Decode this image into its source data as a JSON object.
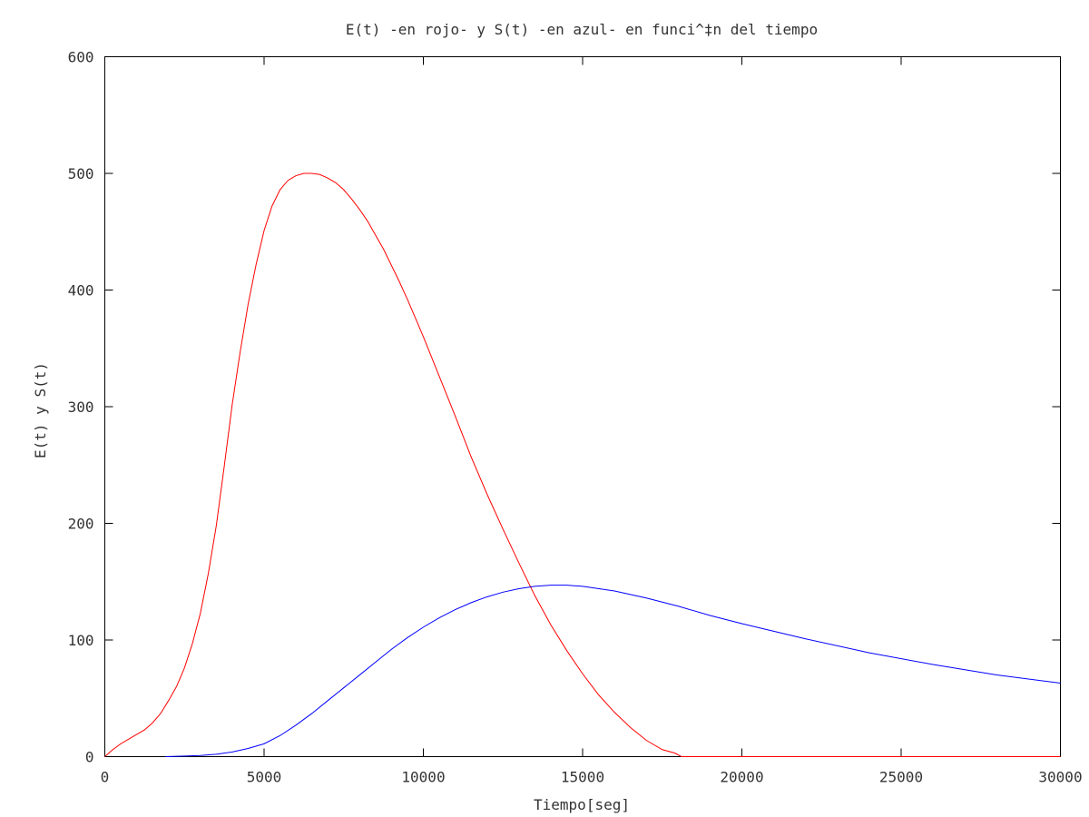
{
  "chart_data": {
    "type": "line",
    "title": "E(t) -en rojo- y S(t) -en azul- en funci^‡n del tiempo",
    "xlabel": "Tiempo[seg]",
    "ylabel": "E(t) y S(t)",
    "xlim": [
      0,
      30000
    ],
    "ylim": [
      0,
      600
    ],
    "xticks": [
      0,
      5000,
      10000,
      15000,
      20000,
      25000,
      30000
    ],
    "yticks": [
      0,
      100,
      200,
      300,
      400,
      500,
      600
    ],
    "grid": false,
    "legend": "none",
    "series": [
      {
        "color": "#ff0000",
        "x": [
          0,
          250,
          500,
          750,
          1000,
          1250,
          1500,
          1750,
          2000,
          2250,
          2500,
          2750,
          3000,
          3250,
          3500,
          3750,
          4000,
          4250,
          4500,
          4750,
          5000,
          5250,
          5500,
          5750,
          6000,
          6250,
          6500,
          6750,
          7000,
          7250,
          7500,
          7750,
          8000,
          8250,
          8500,
          8750,
          9000,
          9250,
          9500,
          9750,
          10000,
          10500,
          11000,
          11500,
          12000,
          12500,
          13000,
          13500,
          14000,
          14500,
          15000,
          15500,
          16000,
          16500,
          17000,
          17500,
          17900,
          18100,
          19000,
          20000,
          22000,
          24000,
          26000,
          28000,
          30000
        ],
        "values": [
          0,
          6,
          11,
          15,
          19,
          23,
          29,
          37,
          48,
          60,
          76,
          97,
          123,
          157,
          198,
          249,
          302,
          347,
          388,
          422,
          451,
          472,
          486,
          494,
          498,
          500,
          500,
          499,
          496,
          492,
          486,
          478,
          469,
          459,
          447,
          435,
          421,
          407,
          392,
          376,
          360,
          326,
          292,
          257,
          225,
          195,
          166,
          138,
          113,
          91,
          71,
          53,
          38,
          25,
          14,
          6,
          3,
          0,
          0,
          0,
          0,
          0,
          0,
          0,
          0
        ]
      },
      {
        "color": "#0000ff",
        "x": [
          1900,
          2500,
          3000,
          3500,
          4000,
          4500,
          5000,
          5500,
          6000,
          6500,
          7000,
          7500,
          8000,
          8500,
          9000,
          9500,
          10000,
          10500,
          11000,
          11500,
          12000,
          12500,
          13000,
          13500,
          14000,
          14500,
          15000,
          16000,
          17000,
          18000,
          19000,
          20000,
          22000,
          24000,
          26000,
          28000,
          30000
        ],
        "values": [
          0,
          0.5,
          1,
          2,
          4,
          7,
          11,
          18,
          27,
          37,
          48,
          59,
          70,
          81,
          92,
          102,
          111,
          119,
          126,
          132,
          137,
          141,
          144,
          146,
          147,
          147,
          146,
          142,
          136,
          129,
          121,
          114,
          101,
          89,
          79,
          70,
          63
        ]
      }
    ]
  }
}
